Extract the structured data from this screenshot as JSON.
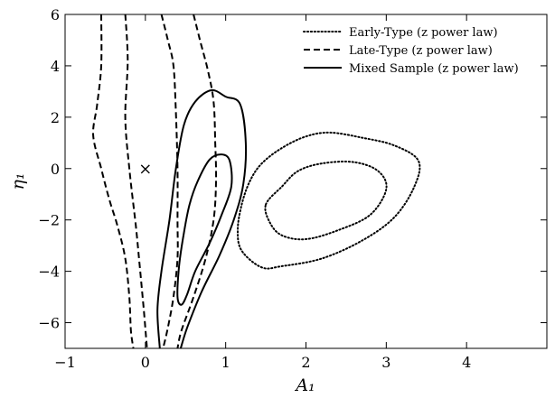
{
  "chart_data": {
    "type": "line",
    "title": "",
    "xlabel": "A₁",
    "ylabel": "η₁",
    "xlim": [
      -1,
      5
    ],
    "ylim": [
      -7,
      6
    ],
    "xticks": [
      -1,
      0,
      1,
      2,
      3,
      4
    ],
    "xtick_labels": [
      "−1",
      "0",
      "1",
      "2",
      "3",
      "4"
    ],
    "yticks": [
      -6,
      -4,
      -2,
      0,
      2,
      4,
      6
    ],
    "ytick_labels": [
      "−6",
      "−4",
      "−2",
      "0",
      "2",
      "4",
      "6"
    ],
    "grid": false,
    "legend_position": "top-right",
    "legend": [
      {
        "label": "Early-Type (z power law)",
        "dash": "dotted"
      },
      {
        "label": "Late-Type (z power law)",
        "dash": "dashed"
      },
      {
        "label": "Mixed Sample (z power law)",
        "dash": "solid"
      }
    ],
    "marker": {
      "symbol": "×",
      "x": 0.0,
      "y": 0.0
    },
    "series": [
      {
        "name": "Early-Type (z power law)",
        "dash": "dotted",
        "curves": [
          {
            "closed": true,
            "points": [
              [
                1.3,
                -0.5
              ],
              [
                1.45,
                0.2
              ],
              [
                1.7,
                0.8
              ],
              [
                2.0,
                1.25
              ],
              [
                2.3,
                1.4
              ],
              [
                2.7,
                1.2
              ],
              [
                3.1,
                0.9
              ],
              [
                3.4,
                0.3
              ],
              [
                3.35,
                -0.7
              ],
              [
                3.1,
                -1.9
              ],
              [
                2.7,
                -2.8
              ],
              [
                2.2,
                -3.5
              ],
              [
                1.7,
                -3.8
              ],
              [
                1.45,
                -3.85
              ],
              [
                1.2,
                -3.2
              ],
              [
                1.15,
                -2.4
              ],
              [
                1.2,
                -1.4
              ]
            ]
          },
          {
            "closed": true,
            "points": [
              [
                1.5,
                -1.4
              ],
              [
                1.7,
                -0.7
              ],
              [
                1.9,
                -0.1
              ],
              [
                2.2,
                0.2
              ],
              [
                2.6,
                0.25
              ],
              [
                2.9,
                -0.1
              ],
              [
                3.0,
                -0.8
              ],
              [
                2.8,
                -1.8
              ],
              [
                2.4,
                -2.4
              ],
              [
                2.0,
                -2.75
              ],
              [
                1.7,
                -2.6
              ],
              [
                1.55,
                -2.1
              ]
            ]
          }
        ]
      },
      {
        "name": "Late-Type (z power law)",
        "dash": "dashed",
        "curves": [
          {
            "closed": false,
            "points": [
              [
                -0.55,
                6.0
              ],
              [
                -0.55,
                4.0
              ],
              [
                -0.6,
                2.5
              ],
              [
                -0.65,
                1.3
              ],
              [
                -0.55,
                0.0
              ],
              [
                -0.45,
                -1.2
              ],
              [
                -0.35,
                -2.2
              ],
              [
                -0.25,
                -3.5
              ],
              [
                -0.2,
                -5.0
              ],
              [
                -0.18,
                -6.3
              ],
              [
                -0.15,
                -7.0
              ]
            ]
          },
          {
            "closed": false,
            "points": [
              [
                -0.25,
                6.0
              ],
              [
                -0.22,
                4.2
              ],
              [
                -0.25,
                2.0
              ],
              [
                -0.2,
                0.0
              ],
              [
                -0.12,
                -2.2
              ],
              [
                -0.07,
                -3.8
              ],
              [
                -0.02,
                -5.5
              ],
              [
                0.02,
                -7.0
              ]
            ]
          },
          {
            "closed": false,
            "points": [
              [
                0.2,
                6.0
              ],
              [
                0.28,
                5.0
              ],
              [
                0.35,
                4.0
              ],
              [
                0.38,
                2.2
              ],
              [
                0.4,
                0.0
              ],
              [
                0.4,
                -2.0
              ],
              [
                0.4,
                -3.5
              ],
              [
                0.35,
                -5.0
              ],
              [
                0.28,
                -6.2
              ],
              [
                0.22,
                -7.0
              ]
            ]
          },
          {
            "closed": false,
            "points": [
              [
                0.6,
                6.0
              ],
              [
                0.68,
                5.0
              ],
              [
                0.78,
                3.8
              ],
              [
                0.85,
                2.6
              ],
              [
                0.87,
                1.0
              ],
              [
                0.88,
                -0.5
              ],
              [
                0.85,
                -2.0
              ],
              [
                0.75,
                -3.5
              ],
              [
                0.6,
                -5.0
              ],
              [
                0.45,
                -6.3
              ],
              [
                0.4,
                -7.0
              ]
            ]
          }
        ]
      },
      {
        "name": "Mixed Sample (z power law)",
        "dash": "solid",
        "curves": [
          {
            "closed": false,
            "points": [
              [
                0.18,
                -7.0
              ],
              [
                0.15,
                -5.5
              ],
              [
                0.2,
                -4.0
              ],
              [
                0.3,
                -2.0
              ],
              [
                0.38,
                0.0
              ],
              [
                0.48,
                1.7
              ],
              [
                0.62,
                2.6
              ],
              [
                0.82,
                3.05
              ],
              [
                1.0,
                2.8
              ],
              [
                1.18,
                2.5
              ],
              [
                1.25,
                1.0
              ],
              [
                1.22,
                -0.6
              ],
              [
                1.1,
                -2.0
              ],
              [
                0.92,
                -3.4
              ],
              [
                0.7,
                -4.8
              ],
              [
                0.52,
                -6.2
              ],
              [
                0.44,
                -7.0
              ]
            ]
          },
          {
            "closed": true,
            "points": [
              [
                0.4,
                -5.0
              ],
              [
                0.42,
                -3.8
              ],
              [
                0.48,
                -2.5
              ],
              [
                0.55,
                -1.4
              ],
              [
                0.65,
                -0.5
              ],
              [
                0.8,
                0.35
              ],
              [
                0.95,
                0.55
              ],
              [
                1.05,
                0.3
              ],
              [
                1.07,
                -0.7
              ],
              [
                0.95,
                -1.8
              ],
              [
                0.8,
                -2.9
              ],
              [
                0.62,
                -4.0
              ],
              [
                0.52,
                -4.9
              ],
              [
                0.45,
                -5.3
              ]
            ]
          }
        ]
      }
    ]
  }
}
